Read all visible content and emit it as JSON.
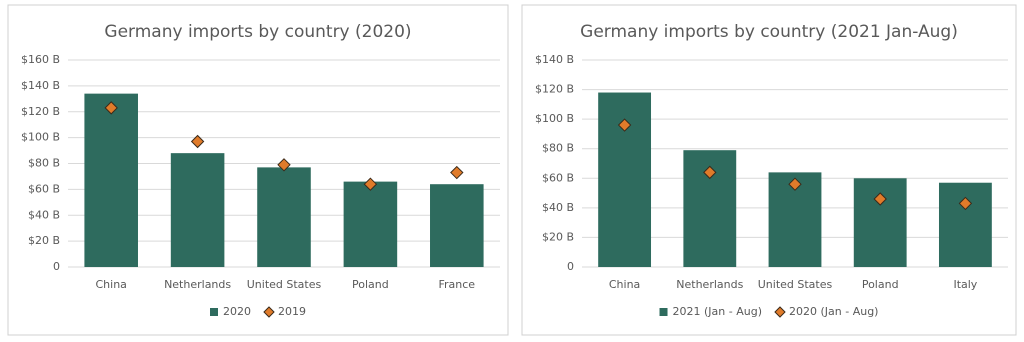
{
  "chart_data": [
    {
      "type": "bar",
      "title": "Germany imports by country (2020)",
      "categories": [
        "China",
        "Netherlands",
        "United States",
        "Poland",
        "France"
      ],
      "series": [
        {
          "name": "2020",
          "mark": "bar",
          "color": "#2e6b5e",
          "values": [
            134,
            88,
            77,
            66,
            64
          ]
        },
        {
          "name": "2019",
          "mark": "diamond",
          "color": "#e07b2a",
          "values": [
            123,
            97,
            79,
            64,
            73
          ]
        }
      ],
      "ylim": [
        0,
        160
      ],
      "yticks": [
        0,
        {
          "value": 20,
          "label": "$20 B"
        },
        {
          "value": 40,
          "label": "$40 B"
        },
        {
          "value": 60,
          "label": "$60 B"
        },
        {
          "value": 80,
          "label": "$80 B"
        },
        {
          "value": 100,
          "label": "$100 B"
        },
        {
          "value": 120,
          "label": "$120 B"
        },
        {
          "value": 140,
          "label": "$140 B"
        },
        {
          "value": 160,
          "label": "$160 B"
        }
      ],
      "grid": true,
      "legend": "bottom"
    },
    {
      "type": "bar",
      "title": "Germany imports by country (2021 Jan-Aug)",
      "categories": [
        "China",
        "Netherlands",
        "United States",
        "Poland",
        "Italy"
      ],
      "series": [
        {
          "name": "2021 (Jan - Aug)",
          "mark": "bar",
          "color": "#2e6b5e",
          "values": [
            118,
            79,
            64,
            60,
            57
          ]
        },
        {
          "name": "2020 (Jan - Aug)",
          "mark": "diamond",
          "color": "#e07b2a",
          "values": [
            96,
            64,
            56,
            46,
            43
          ]
        }
      ],
      "ylim": [
        0,
        140
      ],
      "yticks": [
        0,
        {
          "value": 20,
          "label": "$20 B"
        },
        {
          "value": 40,
          "label": "$40 B"
        },
        {
          "value": 60,
          "label": "$60 B"
        },
        {
          "value": 80,
          "label": "$80 B"
        },
        {
          "value": 100,
          "label": "$100 B"
        },
        {
          "value": 120,
          "label": "$120 B"
        },
        {
          "value": 140,
          "label": "$140 B"
        }
      ],
      "grid": true,
      "legend": "bottom"
    }
  ]
}
